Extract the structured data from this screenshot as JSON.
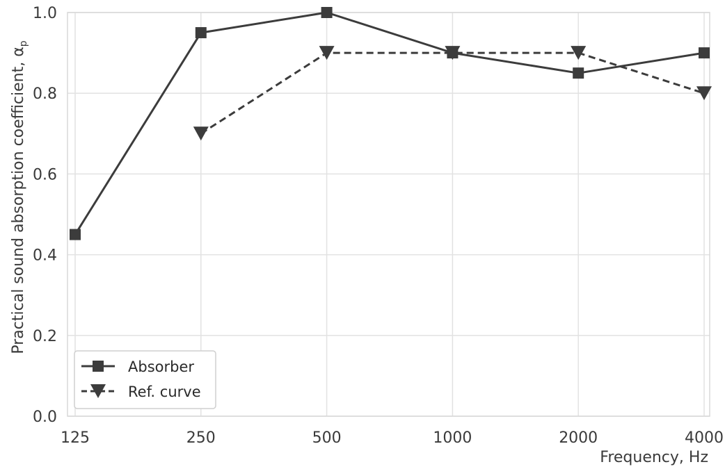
{
  "chart_data": {
    "type": "line",
    "title": "",
    "xlabel": "Frequency, Hz",
    "ylabel": "Practical sound absorption coefficient, α",
    "ylabel_subscript": "p",
    "x_scale": "log",
    "categories": [
      "125",
      "250",
      "500",
      "1000",
      "2000",
      "4000"
    ],
    "x": [
      125,
      250,
      500,
      1000,
      2000,
      4000
    ],
    "xlim": [
      125,
      4000
    ],
    "ylim": [
      0.0,
      1.0
    ],
    "yticks": [
      "0.0",
      "0.2",
      "0.4",
      "0.6",
      "0.8",
      "1.0"
    ],
    "grid": true,
    "legend_position": "lower-left",
    "series": [
      {
        "name": "Absorber",
        "x": [
          125,
          250,
          500,
          1000,
          2000,
          4000
        ],
        "values": [
          0.45,
          0.95,
          1.0,
          0.9,
          0.85,
          0.9
        ],
        "marker": "square",
        "line_style": "solid",
        "color": "#3c3c3c"
      },
      {
        "name": "Ref. curve",
        "x": [
          250,
          500,
          1000,
          2000,
          4000
        ],
        "values": [
          0.7,
          0.9,
          0.9,
          0.9,
          0.8
        ],
        "marker": "triangle-down",
        "line_style": "dashed",
        "color": "#3c3c3c"
      }
    ]
  }
}
